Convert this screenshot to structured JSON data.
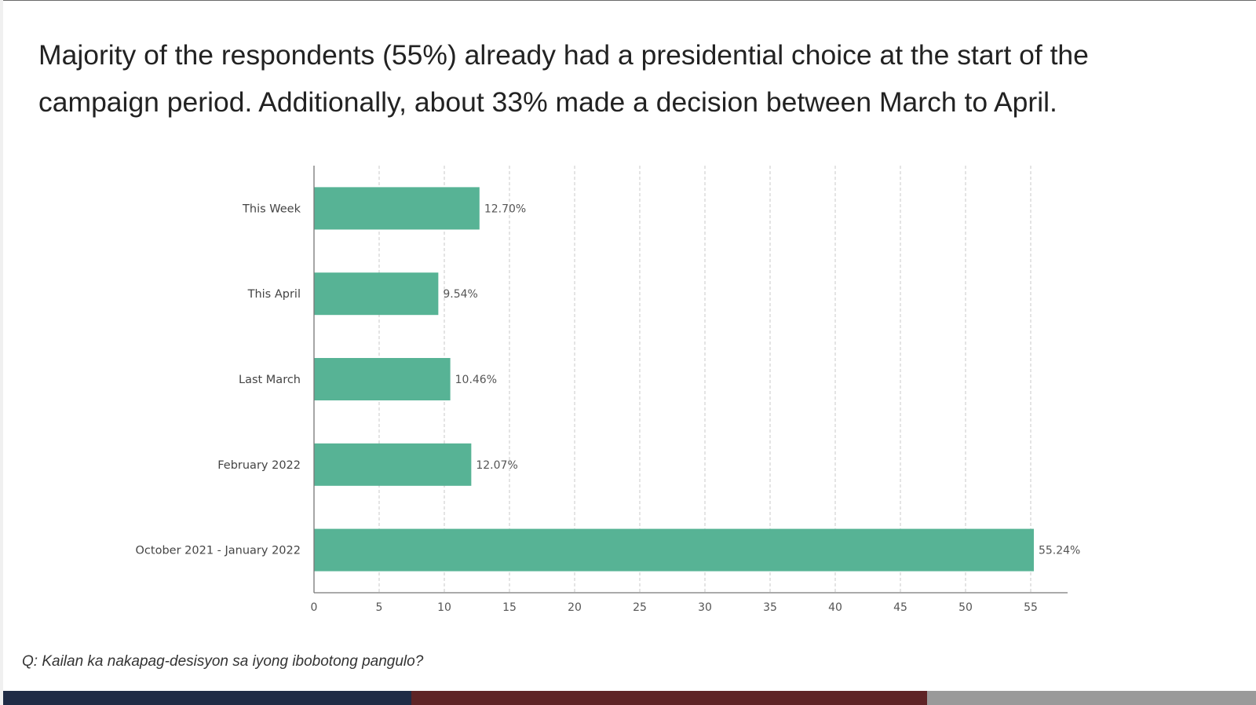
{
  "headline": "Majority of the respondents (55%) already had a presidential choice at the start of the campaign period. Additionally, about 33% made a decision between March to April.",
  "footnote": "Q: Kailan ka nakapag-desisyon sa iyong ibobotong pangulo?",
  "colors": {
    "bar": "#57b395",
    "axis": "#777777",
    "grid": "#c8c8c8",
    "footer_navy": "#1f2b45",
    "footer_maroon": "#5e2426",
    "footer_grey": "#9a9a9a"
  },
  "chart_data": {
    "type": "bar",
    "orientation": "horizontal",
    "title": "",
    "xlabel": "",
    "ylabel": "",
    "categories": [
      "This Week",
      "This April",
      "Last March",
      "February 2022",
      "October 2021 - January 2022"
    ],
    "values": [
      12.7,
      9.54,
      10.46,
      12.07,
      55.24
    ],
    "value_labels": [
      "12.70%",
      "9.54%",
      "10.46%",
      "12.07%",
      "55.24%"
    ],
    "xlim": [
      0,
      58
    ],
    "xticks": [
      0,
      5,
      10,
      15,
      20,
      25,
      30,
      35,
      40,
      45,
      50,
      55
    ],
    "grid": "vertical dashed",
    "legend": "none"
  }
}
